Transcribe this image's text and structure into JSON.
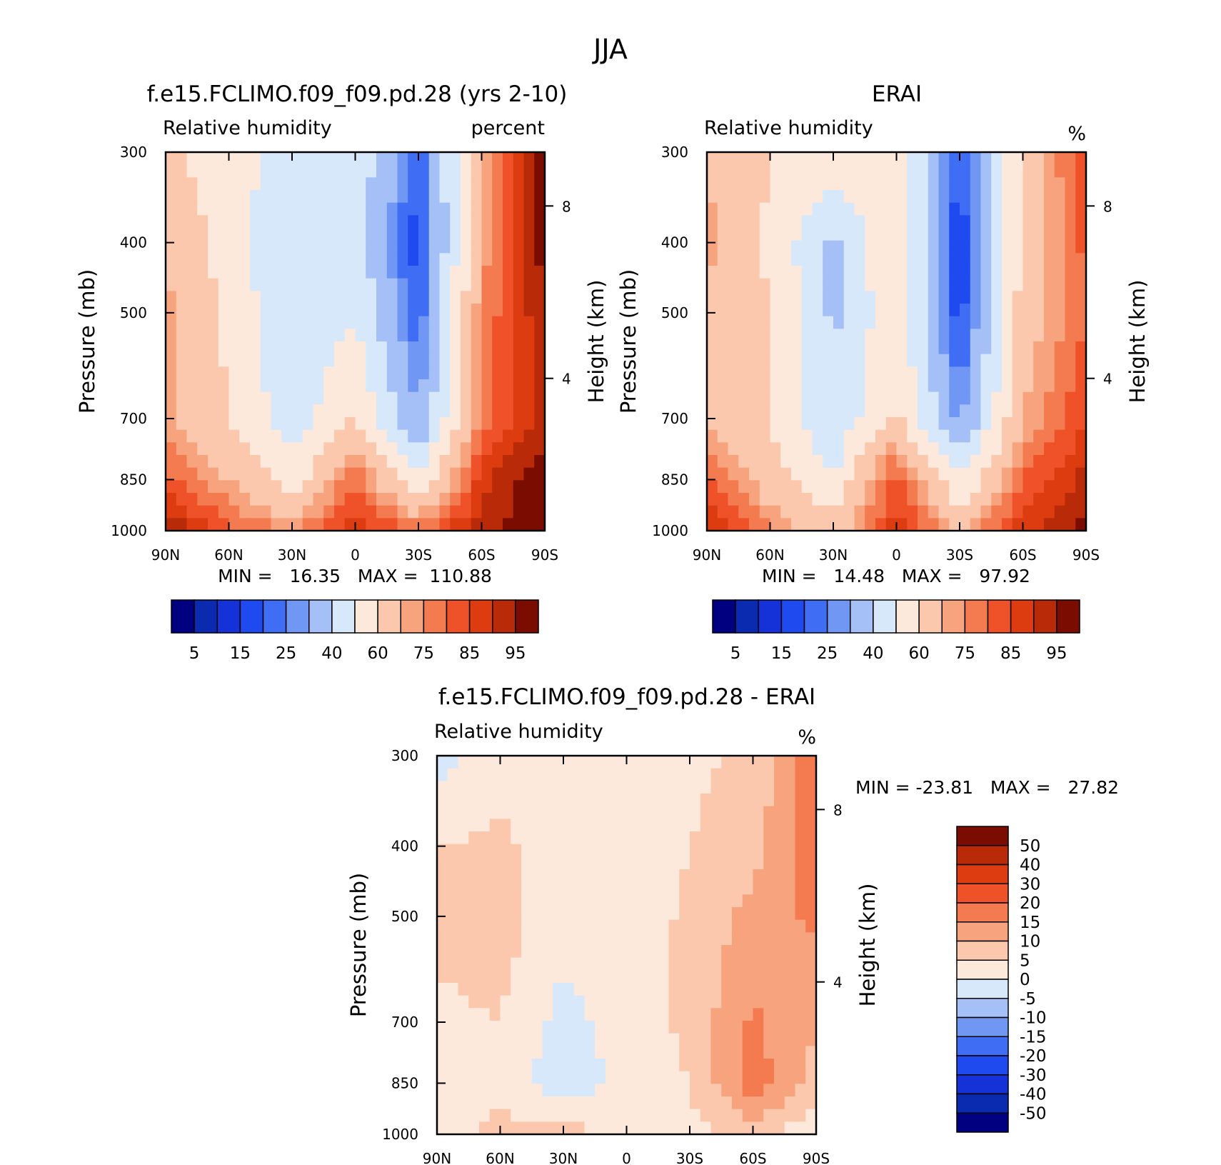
{
  "page_title": "JJA",
  "chart_data": [
    {
      "type": "heatmap",
      "id": "model",
      "title": "f.e15.FCLIMO.f09_f09.pd.28 (yrs 2-10)",
      "subtitle_left": "Relative humidity",
      "subtitle_right": "percent",
      "ylabel": "Pressure (mb)",
      "ylabel_right": "Height (km)",
      "x_ticks": [
        "90N",
        "60N",
        "30N",
        "0",
        "30S",
        "60S",
        "90S"
      ],
      "y_ticks": [
        "300",
        "400",
        "500",
        "700",
        "850",
        "1000"
      ],
      "y_right_ticks": [
        "8",
        "4"
      ],
      "stats": "MIN =   16.35   MAX =  110.88",
      "colorbar_labels": [
        "5",
        "15",
        "25",
        "40",
        "60",
        "75",
        "85",
        "95"
      ],
      "x": [
        90,
        60,
        30,
        0,
        -30,
        -60,
        -90
      ],
      "p": [
        300,
        400,
        500,
        700,
        850,
        1000
      ],
      "values": [
        [
          62,
          55,
          45,
          48,
          20,
          70,
          100
        ],
        [
          70,
          55,
          40,
          45,
          16,
          72,
          98
        ],
        [
          72,
          58,
          40,
          50,
          20,
          75,
          95
        ],
        [
          72,
          60,
          45,
          60,
          30,
          78,
          92
        ],
        [
          82,
          70,
          55,
          80,
          50,
          88,
          100
        ],
        [
          95,
          82,
          75,
          88,
          80,
          92,
          100
        ]
      ]
    },
    {
      "type": "heatmap",
      "id": "erai",
      "title": "ERAI",
      "subtitle_left": "Relative humidity",
      "subtitle_right": "%",
      "ylabel": "Pressure (mb)",
      "ylabel_right": "Height (km)",
      "x_ticks": [
        "90N",
        "60N",
        "30N",
        "0",
        "30S",
        "60S",
        "90S"
      ],
      "y_ticks": [
        "300",
        "400",
        "500",
        "700",
        "850",
        "1000"
      ],
      "y_right_ticks": [
        "8",
        "4"
      ],
      "stats": "MIN =   14.48   MAX =   97.92",
      "colorbar_labels": [
        "5",
        "15",
        "25",
        "40",
        "60",
        "75",
        "85",
        "95"
      ],
      "x": [
        90,
        60,
        30,
        0,
        -30,
        -60,
        -90
      ],
      "p": [
        300,
        400,
        500,
        700,
        850,
        1000
      ],
      "values": [
        [
          70,
          60,
          55,
          60,
          18,
          62,
          85
        ],
        [
          72,
          58,
          38,
          60,
          15,
          62,
          82
        ],
        [
          68,
          60,
          38,
          58,
          16,
          65,
          80
        ],
        [
          68,
          60,
          42,
          62,
          28,
          70,
          85
        ],
        [
          80,
          65,
          50,
          85,
          50,
          80,
          92
        ],
        [
          92,
          75,
          65,
          88,
          70,
          88,
          97
        ]
      ]
    },
    {
      "type": "heatmap",
      "id": "diff",
      "title": "f.e15.FCLIMO.f09_f09.pd.28 - ERAI",
      "subtitle_left": "Relative humidity",
      "subtitle_right": "%",
      "ylabel": "Pressure (mb)",
      "ylabel_right": "Height (km)",
      "x_ticks": [
        "90N",
        "60N",
        "30N",
        "0",
        "30S",
        "60S",
        "90S"
      ],
      "y_ticks": [
        "300",
        "400",
        "500",
        "700",
        "850",
        "1000"
      ],
      "y_right_ticks": [
        "8",
        "4"
      ],
      "stats": "MIN = -23.81   MAX =   27.82",
      "colorbar_labels": [
        "50",
        "40",
        "30",
        "20",
        "15",
        "10",
        "5",
        "0",
        "-5",
        "-10",
        "-15",
        "-20",
        "-30",
        "-40",
        "-50"
      ],
      "x": [
        90,
        60,
        30,
        0,
        -30,
        -60,
        -90
      ],
      "p": [
        300,
        400,
        500,
        700,
        850,
        1000
      ],
      "values": [
        [
          -2,
          3,
          2,
          2,
          4,
          6,
          20
        ],
        [
          5,
          6,
          3,
          1,
          5,
          8,
          18
        ],
        [
          6,
          7,
          2,
          2,
          6,
          12,
          16
        ],
        [
          4,
          5,
          -2,
          3,
          6,
          16,
          10
        ],
        [
          3,
          4,
          -4,
          2,
          5,
          18,
          8
        ],
        [
          3,
          6,
          8,
          2,
          4,
          6,
          2
        ]
      ]
    }
  ],
  "colors": {
    "rh_levels": [
      0,
      5,
      10,
      15,
      20,
      25,
      30,
      40,
      50,
      60,
      70,
      75,
      80,
      85,
      90,
      95
    ],
    "rh_palette": [
      "#000080",
      "#0a2ab0",
      "#1432d8",
      "#1f4af0",
      "#3f6ef5",
      "#6f97f3",
      "#a5c0f7",
      "#d6e8fa",
      "#fde9dc",
      "#fbc8ae",
      "#f7a37e",
      "#f47a50",
      "#ef5128",
      "#dc3c10",
      "#b82a08",
      "#7a0c02"
    ],
    "diff_levels": [
      -60,
      -50,
      -40,
      -30,
      -20,
      -15,
      -10,
      -5,
      0,
      5,
      10,
      15,
      20,
      30,
      40,
      50
    ],
    "diff_palette": [
      "#000080",
      "#0a2ab0",
      "#1432d8",
      "#1f4af0",
      "#3f6ef5",
      "#6f97f3",
      "#a5c0f7",
      "#d6e8fa",
      "#fde9dc",
      "#fbc8ae",
      "#f7a37e",
      "#f47a50",
      "#ef5128",
      "#dc3c10",
      "#b82a08",
      "#7a0c02"
    ]
  }
}
